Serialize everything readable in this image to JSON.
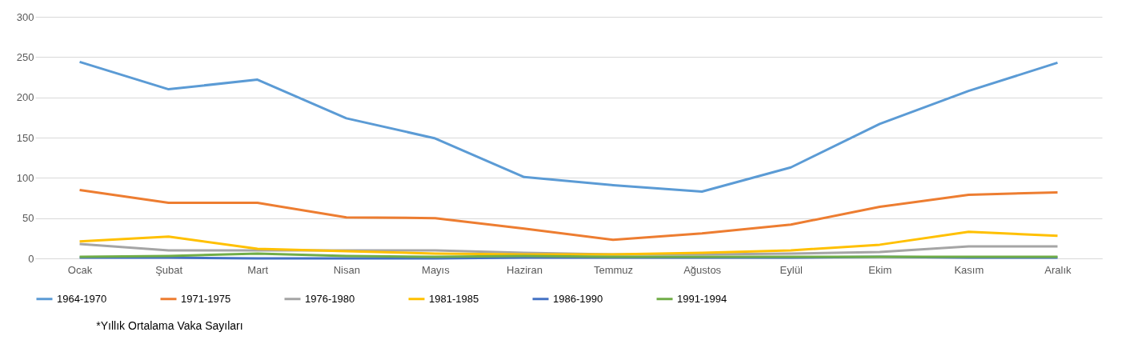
{
  "chart_data": {
    "type": "line",
    "categories": [
      "Ocak",
      "Şubat",
      "Mart",
      "Nisan",
      "Mayıs",
      "Haziran",
      "Temmuz",
      "Ağustos",
      "Eylül",
      "Ekim",
      "Kasım",
      "Aralık"
    ],
    "series": [
      {
        "name": "1964-1970",
        "color": "#5b9bd5",
        "values": [
          244,
          210,
          222,
          174,
          149,
          101,
          91,
          83,
          113,
          167,
          208,
          243
        ]
      },
      {
        "name": "1971-1975",
        "color": "#ed7d31",
        "values": [
          85,
          69,
          69,
          51,
          50,
          37,
          23,
          31,
          42,
          64,
          79,
          82
        ]
      },
      {
        "name": "1976-1980",
        "color": "#a5a5a5",
        "values": [
          18,
          10,
          10,
          10,
          10,
          7,
          5,
          5,
          6,
          8,
          15,
          15
        ]
      },
      {
        "name": "1981-1985",
        "color": "#ffc000",
        "values": [
          21,
          27,
          12,
          9,
          6,
          5,
          5,
          7,
          10,
          17,
          33,
          28
        ]
      },
      {
        "name": "1986-1990",
        "color": "#4472c4",
        "values": [
          1,
          1,
          0,
          0,
          0,
          1,
          1,
          1,
          1,
          2,
          1,
          1
        ]
      },
      {
        "name": "1991-1994",
        "color": "#70ad47",
        "values": [
          2,
          3,
          6,
          3,
          2,
          3,
          2,
          2,
          2,
          2,
          2,
          2
        ]
      }
    ],
    "ylim": [
      0,
      300
    ],
    "yticks": [
      0,
      50,
      100,
      150,
      200,
      250,
      300
    ],
    "grid": "y",
    "legend": "bottom",
    "marker": "none",
    "line_style": "solid",
    "annotations": [
      "*Yıllık Ortalama Vaka Sayıları"
    ]
  }
}
